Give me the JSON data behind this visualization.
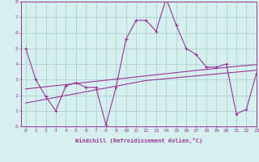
{
  "xlabel": "Windchill (Refroidissement éolien,°C)",
  "background_color": "#d6f0f0",
  "grid_color": "#b0d0d0",
  "line_color": "#993399",
  "x_data": [
    0,
    1,
    2,
    3,
    4,
    5,
    6,
    7,
    8,
    9,
    10,
    11,
    12,
    13,
    14,
    15,
    16,
    17,
    18,
    19,
    20,
    21,
    22,
    23
  ],
  "y_main": [
    5.0,
    3.0,
    1.9,
    1.0,
    2.6,
    2.8,
    2.5,
    2.5,
    0.1,
    2.5,
    5.6,
    6.8,
    6.8,
    6.1,
    8.2,
    6.5,
    5.0,
    4.6,
    3.8,
    3.8,
    4.0,
    0.8,
    1.1,
    3.4
  ],
  "y_reg1": [
    2.4,
    2.47,
    2.54,
    2.61,
    2.68,
    2.75,
    2.82,
    2.89,
    2.96,
    3.03,
    3.1,
    3.17,
    3.24,
    3.31,
    3.38,
    3.45,
    3.52,
    3.59,
    3.65,
    3.72,
    3.78,
    3.85,
    3.9,
    3.96
  ],
  "y_reg2": [
    1.5,
    1.62,
    1.74,
    1.86,
    1.98,
    2.1,
    2.22,
    2.34,
    2.46,
    2.58,
    2.7,
    2.82,
    2.94,
    3.0,
    3.06,
    3.12,
    3.18,
    3.24,
    3.3,
    3.36,
    3.42,
    3.48,
    3.54,
    3.6
  ],
  "ylim": [
    0,
    8
  ],
  "xlim": [
    -0.5,
    23
  ],
  "yticks": [
    0,
    1,
    2,
    3,
    4,
    5,
    6,
    7,
    8
  ],
  "xticks": [
    0,
    1,
    2,
    3,
    4,
    5,
    6,
    7,
    8,
    9,
    10,
    11,
    12,
    13,
    14,
    15,
    16,
    17,
    18,
    19,
    20,
    21,
    22,
    23
  ]
}
